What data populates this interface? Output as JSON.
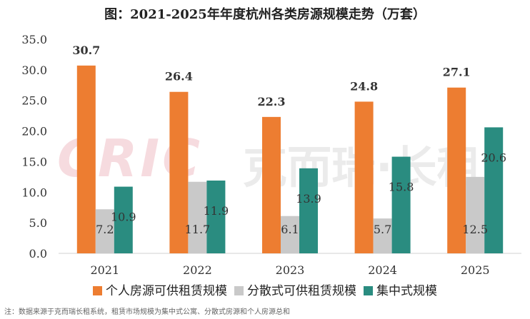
{
  "title": "图：2021-2025年年度杭州各类房源规模走势（万套）",
  "watermark": {
    "logo": "CRIC",
    "text": "克而瑞·长租"
  },
  "source_note": "注：数据来源于克而瑞长租系统，租赁市场规模为集中式公寓、分散式房源和个人房源总和",
  "colors": {
    "series_0": "#ED7D31",
    "series_1": "#C9C9C9",
    "series_2": "#2A8C80"
  },
  "chart_data": {
    "type": "bar",
    "title": "图：2021-2025年年度杭州各类房源规模走势（万套）",
    "xlabel": "",
    "ylabel": "",
    "categories": [
      "2021",
      "2022",
      "2023",
      "2024",
      "2025"
    ],
    "ylim": [
      0,
      35
    ],
    "yticks": [
      "0.0",
      "5.0",
      "10.0",
      "15.0",
      "20.0",
      "25.0",
      "30.0",
      "35.0"
    ],
    "grid": false,
    "legend_position": "bottom",
    "series": [
      {
        "name": "个人房源可供租赁规模",
        "values": [
          30.7,
          26.4,
          22.3,
          24.8,
          27.1
        ],
        "labels": [
          "30.7",
          "26.4",
          "22.3",
          "24.8",
          "27.1"
        ]
      },
      {
        "name": "分散式可供租赁规模",
        "values": [
          7.2,
          11.7,
          6.1,
          5.7,
          12.5
        ],
        "labels": [
          "7.2",
          "11.7",
          "6.1",
          "5.7",
          "12.5"
        ]
      },
      {
        "name": "集中式规模",
        "values": [
          10.9,
          11.9,
          13.9,
          15.8,
          20.6
        ],
        "labels": [
          "10.9",
          "11.9",
          "13.9",
          "15.8",
          "20.6"
        ]
      }
    ]
  }
}
